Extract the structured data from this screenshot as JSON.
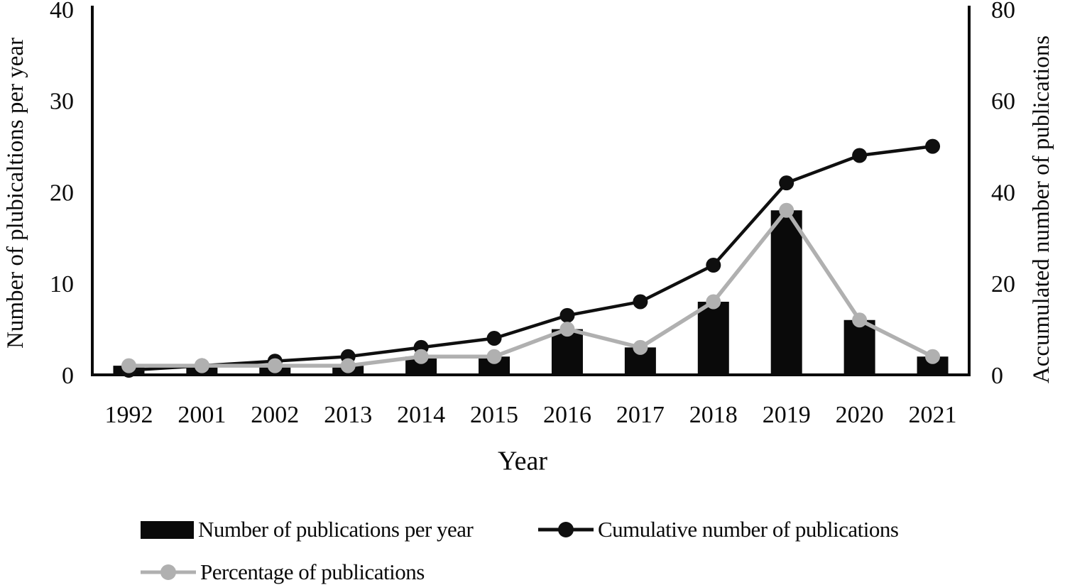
{
  "chart_data": {
    "type": "bar",
    "title": "",
    "categories": [
      "1992",
      "2001",
      "2002",
      "2013",
      "2014",
      "2015",
      "2016",
      "2017",
      "2018",
      "2019",
      "2020",
      "2021"
    ],
    "series": [
      {
        "name": "Number of publications per year",
        "type": "bar",
        "axis": "left",
        "color": "#0a0a0a",
        "values": [
          1,
          1,
          1,
          1,
          2,
          2,
          5,
          3,
          8,
          18,
          6,
          2
        ]
      },
      {
        "name": "Cumulative number of publications",
        "type": "line",
        "axis": "right",
        "color": "#0f0f0f",
        "values": [
          1,
          2,
          3,
          4,
          6,
          8,
          13,
          16,
          24,
          42,
          48,
          50
        ]
      },
      {
        "name": "Percentage of publications",
        "type": "line",
        "axis": "right",
        "unit": "%",
        "color": "#b0b0b0",
        "values": [
          2,
          2,
          2,
          2,
          4,
          4,
          10,
          6,
          16,
          36,
          12,
          4
        ]
      }
    ],
    "left_axis": {
      "label": "Number of plubicaltions per year",
      "range": [
        0,
        40
      ],
      "ticks": [
        0,
        10,
        20,
        30,
        40
      ]
    },
    "right_axis": {
      "label": "Accumulated number of publications",
      "range": [
        0,
        80
      ],
      "ticks": [
        0,
        20,
        40,
        60,
        80
      ]
    },
    "x_axis": {
      "label": "Year"
    },
    "grid": false,
    "legend_position": "bottom"
  },
  "legend": {
    "items": [
      {
        "label": "Number of publications per year",
        "marker": "bar-swatch",
        "color": "#0a0a0a"
      },
      {
        "label": "Cumulative number of publications",
        "marker": "line-dot",
        "color": "#0f0f0f"
      },
      {
        "label": "Percentage of publications",
        "marker": "line-dot",
        "color": "#b0b0b0"
      }
    ]
  }
}
